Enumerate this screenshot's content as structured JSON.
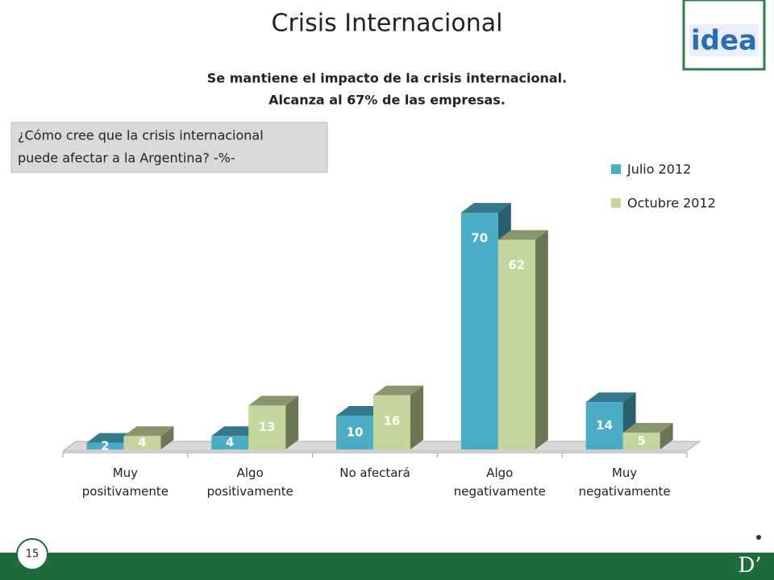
{
  "title": "Crisis Internacional",
  "subtitle": [
    "Se mantiene el impacto de la crisis internacional.",
    "Alcanza al 67% de las empresas."
  ],
  "question": [
    "¿Cómo cree que la crisis internacional",
    "puede afectar a la Argentina? -%-"
  ],
  "logo": "idea",
  "page_number": "15",
  "footer_mark": "D’",
  "chart_data": {
    "type": "bar3d",
    "categories": [
      "Muy\npositivamente",
      "Algo\npositivamente",
      "No afectará",
      "Algo\nnegativamente",
      "Muy\nnegativamente"
    ],
    "series": [
      {
        "name": "Julio 2012",
        "color": "#4bacc6",
        "values": [
          2,
          4,
          10,
          70,
          14
        ]
      },
      {
        "name": "Octubre 2012",
        "color": "#c3d69b",
        "values": [
          4,
          13,
          16,
          62,
          5
        ]
      }
    ],
    "legend": "right"
  }
}
